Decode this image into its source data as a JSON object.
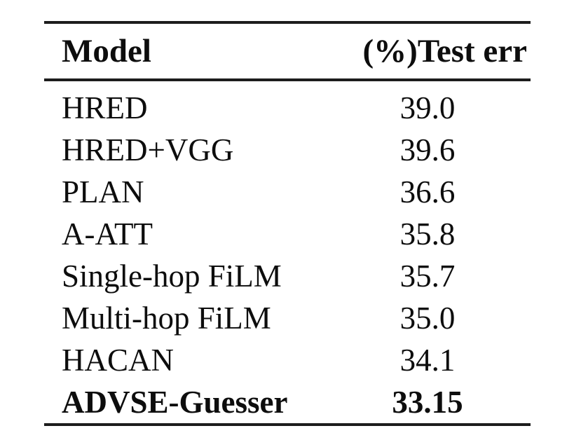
{
  "table": {
    "header": {
      "model_label": "Model",
      "value_label": "(%)Test err"
    },
    "rows": [
      {
        "model": "HRED",
        "test_err": "39.0"
      },
      {
        "model": "HRED+VGG",
        "test_err": "39.6"
      },
      {
        "model": "PLAN",
        "test_err": "36.6"
      },
      {
        "model": "A-ATT",
        "test_err": "35.8"
      },
      {
        "model": "Single-hop FiLM",
        "test_err": "35.7"
      },
      {
        "model": "Multi-hop FiLM",
        "test_err": "35.0"
      },
      {
        "model": "HACAN",
        "test_err": "34.1"
      },
      {
        "model": "ADVSE-Guesser",
        "test_err": "33.15"
      }
    ]
  },
  "colors": {
    "text": "#0d0d0d",
    "rule": "#1d1d1d",
    "background": "#ffffff"
  },
  "chart_data": {
    "type": "table",
    "columns": [
      "Model",
      "(%)Test err"
    ],
    "rows": [
      [
        "HRED",
        39.0
      ],
      [
        "HRED+VGG",
        39.6
      ],
      [
        "PLAN",
        36.6
      ],
      [
        "A-ATT",
        35.8
      ],
      [
        "Single-hop FiLM",
        35.7
      ],
      [
        "Multi-hop FiLM",
        35.0
      ],
      [
        "HACAN",
        34.1
      ],
      [
        "ADVSE-Guesser",
        33.15
      ]
    ],
    "notes_layout": "last row bold; booktabs rules top, below header, bottom; value column centered"
  }
}
